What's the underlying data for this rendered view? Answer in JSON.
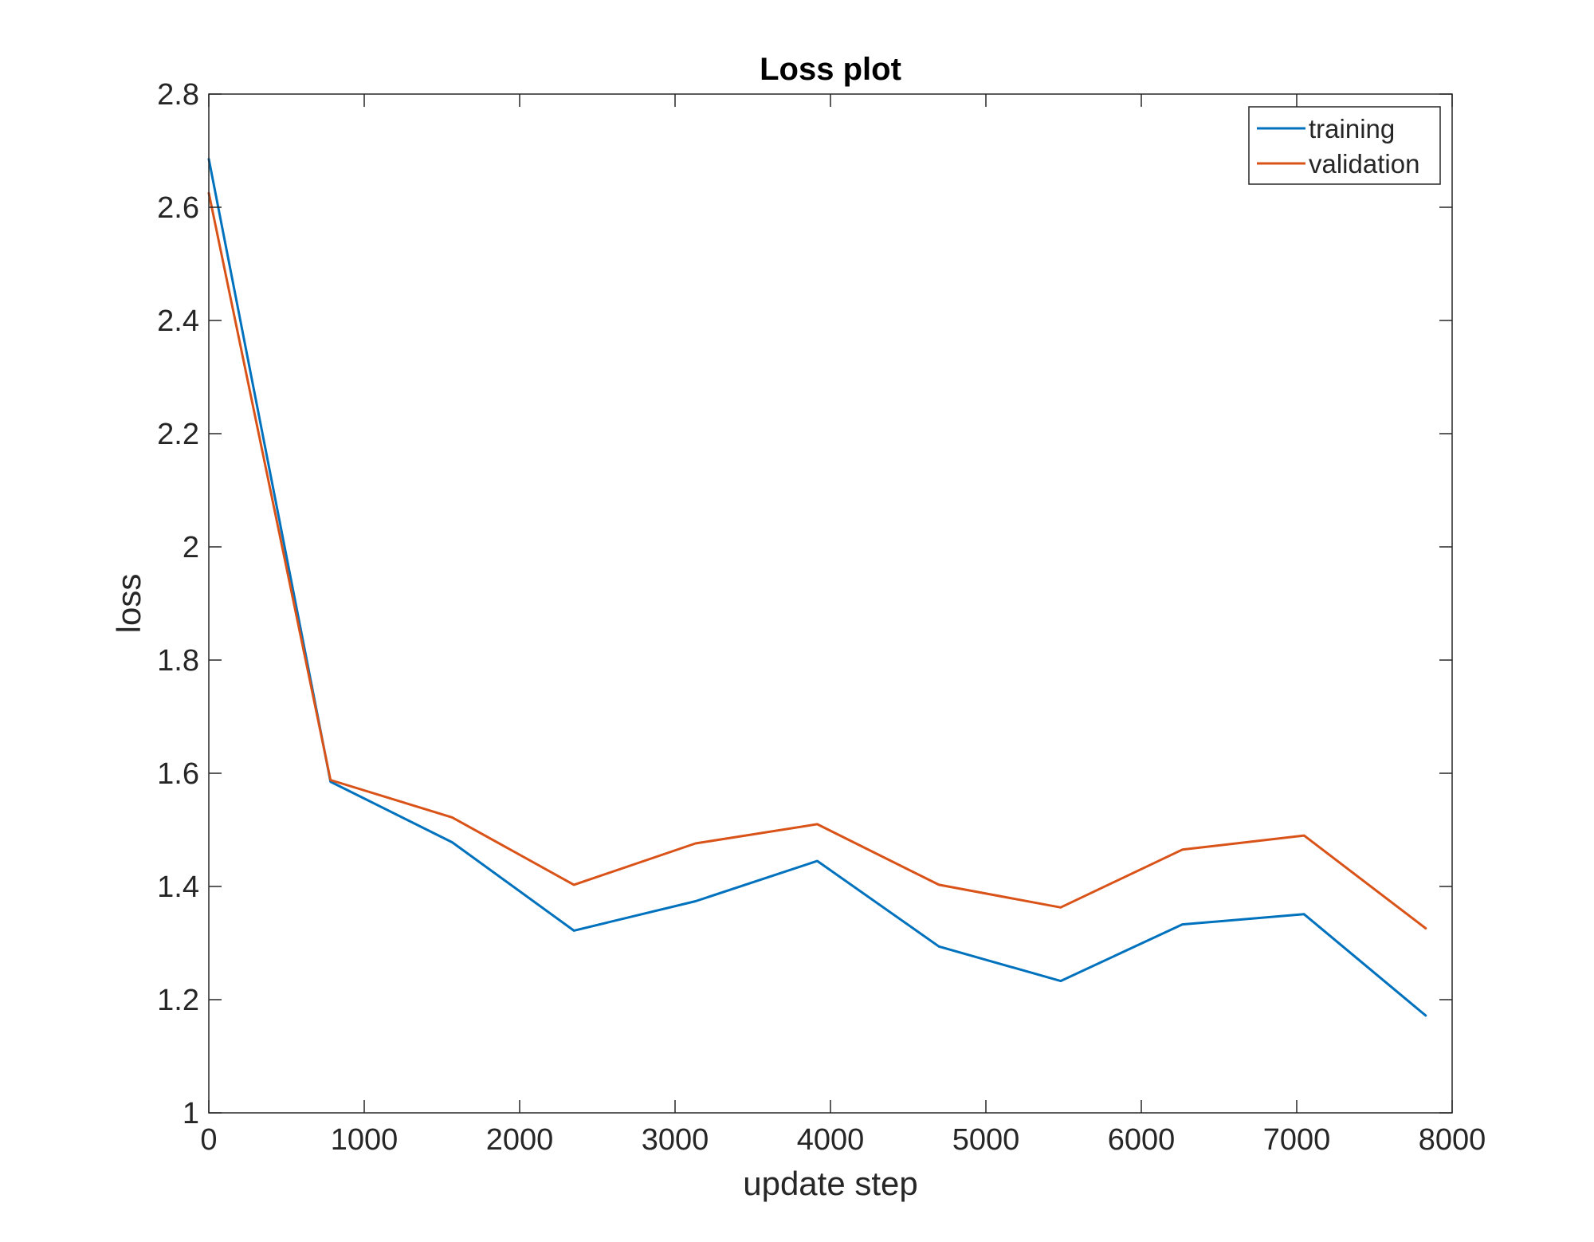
{
  "chart_data": {
    "type": "line",
    "title": "Loss plot",
    "xlabel": "update step",
    "ylabel": "loss",
    "xlim": [
      0,
      8000
    ],
    "ylim": [
      1,
      2.8
    ],
    "xticks": [
      0,
      1000,
      2000,
      3000,
      4000,
      5000,
      6000,
      7000,
      8000
    ],
    "xtick_labels": [
      "0",
      "1000",
      "2000",
      "3000",
      "4000",
      "5000",
      "6000",
      "7000",
      "8000"
    ],
    "yticks": [
      1,
      1.2,
      1.4,
      1.6,
      1.8,
      2,
      2.2,
      2.4,
      2.6,
      2.8
    ],
    "ytick_labels": [
      "1",
      "1.2",
      "1.4",
      "1.6",
      "1.8",
      "2",
      "2.2",
      "2.4",
      "2.6",
      "2.8"
    ],
    "grid": false,
    "legend_position": "top-right",
    "x": [
      0,
      783,
      1566,
      2349,
      3132,
      3915,
      4698,
      5481,
      6264,
      7047,
      7830
    ],
    "series": [
      {
        "name": "training",
        "color": "#0072BD",
        "values": [
          2.685,
          1.585,
          1.478,
          1.322,
          1.374,
          1.445,
          1.294,
          1.233,
          1.333,
          1.351,
          1.172
        ]
      },
      {
        "name": "validation",
        "color": "#D95319",
        "values": [
          2.625,
          1.588,
          1.522,
          1.403,
          1.476,
          1.51,
          1.403,
          1.363,
          1.465,
          1.49,
          1.326
        ]
      }
    ]
  }
}
